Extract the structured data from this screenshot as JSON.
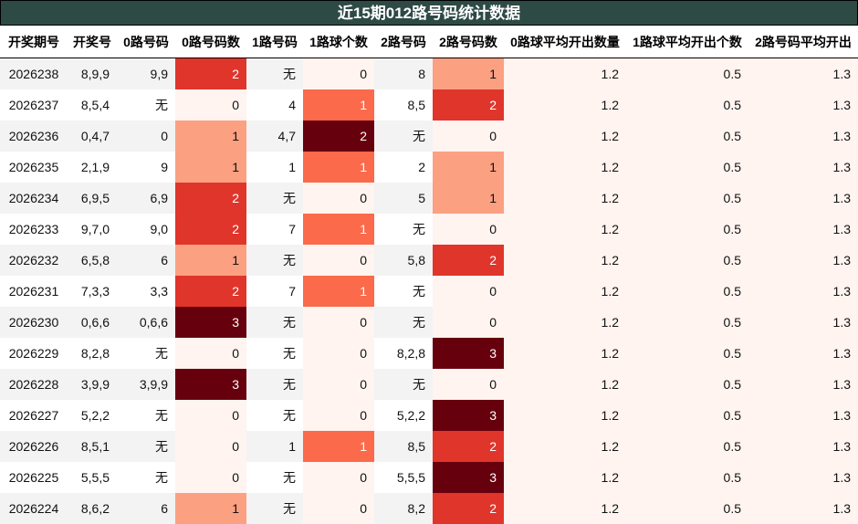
{
  "title": "近15期012路号码统计数据",
  "columns": [
    "开奖期号",
    "开奖号",
    "0路号码",
    "0路号码数",
    "1路号码",
    "1路球个数",
    "2路号码",
    "2路号码数",
    "0路球平均开出数量",
    "1路球平均开出个数",
    "2路号码平均开出"
  ],
  "rows": [
    [
      "2026238",
      "8,9,9",
      "9,9",
      "2",
      "无",
      "0",
      "8",
      "1",
      "1.2",
      "0.5",
      "1.3"
    ],
    [
      "2026237",
      "8,5,4",
      "无",
      "0",
      "4",
      "1",
      "8,5",
      "2",
      "1.2",
      "0.5",
      "1.3"
    ],
    [
      "2026236",
      "0,4,7",
      "0",
      "1",
      "4,7",
      "2",
      "无",
      "0",
      "1.2",
      "0.5",
      "1.3"
    ],
    [
      "2026235",
      "2,1,9",
      "9",
      "1",
      "1",
      "1",
      "2",
      "1",
      "1.2",
      "0.5",
      "1.3"
    ],
    [
      "2026234",
      "6,9,5",
      "6,9",
      "2",
      "无",
      "0",
      "5",
      "1",
      "1.2",
      "0.5",
      "1.3"
    ],
    [
      "2026233",
      "9,7,0",
      "9,0",
      "2",
      "7",
      "1",
      "无",
      "0",
      "1.2",
      "0.5",
      "1.3"
    ],
    [
      "2026232",
      "6,5,8",
      "6",
      "1",
      "无",
      "0",
      "5,8",
      "2",
      "1.2",
      "0.5",
      "1.3"
    ],
    [
      "2026231",
      "7,3,3",
      "3,3",
      "2",
      "7",
      "1",
      "无",
      "0",
      "1.2",
      "0.5",
      "1.3"
    ],
    [
      "2026230",
      "0,6,6",
      "0,6,6",
      "3",
      "无",
      "0",
      "无",
      "0",
      "1.2",
      "0.5",
      "1.3"
    ],
    [
      "2026229",
      "8,2,8",
      "无",
      "0",
      "无",
      "0",
      "8,2,8",
      "3",
      "1.2",
      "0.5",
      "1.3"
    ],
    [
      "2026228",
      "3,9,9",
      "3,9,9",
      "3",
      "无",
      "0",
      "无",
      "0",
      "1.2",
      "0.5",
      "1.3"
    ],
    [
      "2026227",
      "5,2,2",
      "无",
      "0",
      "无",
      "0",
      "5,2,2",
      "3",
      "1.2",
      "0.5",
      "1.3"
    ],
    [
      "2026226",
      "8,5,1",
      "无",
      "0",
      "1",
      "1",
      "8,5",
      "2",
      "1.2",
      "0.5",
      "1.3"
    ],
    [
      "2026225",
      "5,5,5",
      "无",
      "0",
      "无",
      "0",
      "5,5,5",
      "3",
      "1.2",
      "0.5",
      "1.3"
    ],
    [
      "2026224",
      "8,6,2",
      "6",
      "1",
      "无",
      "0",
      "8,2",
      "2",
      "1.2",
      "0.5",
      "1.3"
    ]
  ]
}
